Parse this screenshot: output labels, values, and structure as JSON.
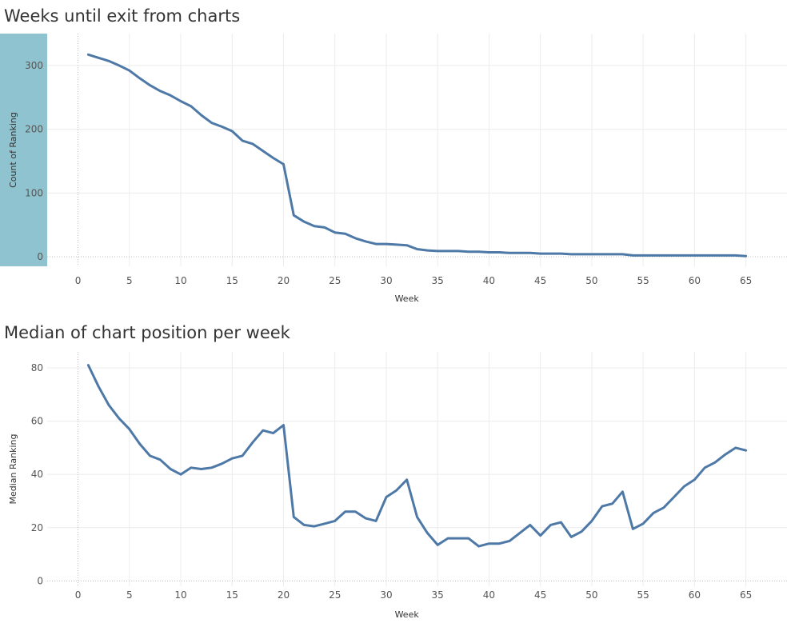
{
  "chart_data": [
    {
      "type": "line",
      "title": "Weeks until exit from charts",
      "xlabel": "Week",
      "ylabel": "Count of Ranking",
      "xlim": [
        -3,
        69
      ],
      "ylim": [
        -15,
        350
      ],
      "xticks": [
        0,
        5,
        10,
        15,
        20,
        25,
        30,
        35,
        40,
        45,
        50,
        55,
        60,
        65
      ],
      "yticks": [
        0,
        100,
        200,
        300
      ],
      "grid": true,
      "highlight_color": "#8fc3d0",
      "series": [
        {
          "color": "#4e79a7",
          "x": [
            1,
            2,
            3,
            4,
            5,
            6,
            7,
            8,
            9,
            10,
            11,
            12,
            13,
            14,
            15,
            16,
            17,
            18,
            19,
            20,
            21,
            22,
            23,
            24,
            25,
            26,
            27,
            28,
            29,
            30,
            31,
            32,
            33,
            34,
            35,
            36,
            37,
            38,
            39,
            40,
            41,
            42,
            43,
            44,
            45,
            46,
            47,
            48,
            49,
            50,
            51,
            52,
            53,
            54,
            55,
            56,
            57,
            58,
            59,
            60,
            61,
            62,
            63,
            64,
            65
          ],
          "values": [
            317,
            312,
            307,
            300,
            292,
            280,
            269,
            260,
            253,
            244,
            236,
            222,
            210,
            204,
            197,
            182,
            177,
            166,
            155,
            145,
            65,
            55,
            48,
            46,
            38,
            36,
            29,
            24,
            20,
            20,
            19,
            18,
            12,
            10,
            9,
            9,
            9,
            8,
            8,
            7,
            7,
            6,
            6,
            6,
            5,
            5,
            5,
            4,
            4,
            4,
            4,
            4,
            4,
            2,
            2,
            2,
            2,
            2,
            2,
            2,
            2,
            2,
            2,
            2,
            1
          ]
        }
      ]
    },
    {
      "type": "line",
      "title": "Median of chart position per week",
      "xlabel": "Week",
      "ylabel": "Median Ranking",
      "xlim": [
        -3,
        69
      ],
      "ylim": [
        -2,
        86
      ],
      "xticks": [
        0,
        5,
        10,
        15,
        20,
        25,
        30,
        35,
        40,
        45,
        50,
        55,
        60,
        65
      ],
      "yticks": [
        0,
        20,
        40,
        60,
        80
      ],
      "grid": true,
      "series": [
        {
          "color": "#4e79a7",
          "x": [
            1,
            2,
            3,
            4,
            5,
            6,
            7,
            8,
            9,
            10,
            11,
            12,
            13,
            14,
            15,
            16,
            17,
            18,
            19,
            20,
            21,
            22,
            23,
            24,
            25,
            26,
            27,
            28,
            29,
            30,
            31,
            32,
            33,
            34,
            35,
            36,
            37,
            38,
            39,
            40,
            41,
            42,
            43,
            44,
            45,
            46,
            47,
            48,
            49,
            50,
            51,
            52,
            53,
            54,
            55,
            56,
            57,
            58,
            59,
            60,
            61,
            62,
            63,
            64,
            65
          ],
          "values": [
            81,
            73,
            66,
            61,
            57,
            51.5,
            47,
            45.5,
            42,
            40,
            42.5,
            42,
            42.5,
            44,
            46,
            47,
            52,
            56.5,
            55.5,
            58.5,
            24,
            21,
            20.5,
            21.5,
            22.5,
            26,
            26,
            23.5,
            22.5,
            31.5,
            34,
            38,
            24,
            18,
            13.5,
            16,
            16,
            16,
            13,
            14,
            14,
            15,
            18,
            21,
            17,
            21,
            22,
            16.5,
            18.5,
            22.5,
            28,
            29,
            33.5,
            19.5,
            21.5,
            25.5,
            27.5,
            31.5,
            35.5,
            38,
            42.5,
            44.5,
            47.5,
            50,
            49
          ]
        }
      ]
    }
  ]
}
